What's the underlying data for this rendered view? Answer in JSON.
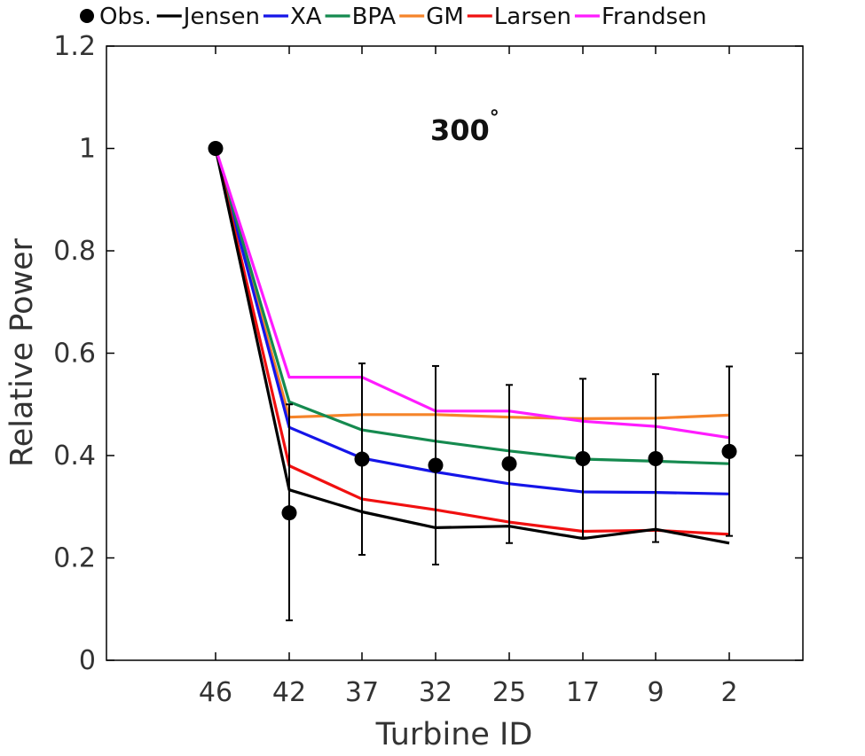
{
  "chart_data": {
    "type": "line",
    "title": "",
    "annotation": {
      "text": "300",
      "superscript": "°"
    },
    "xlabel": "Turbine ID",
    "ylabel": "Relative Power",
    "categories": [
      "46",
      "42",
      "37",
      "32",
      "25",
      "17",
      "9",
      "2"
    ],
    "ylim": [
      0,
      1.2
    ],
    "yticks": [
      "0",
      "0.2",
      "0.4",
      "0.6",
      "0.8",
      "1",
      "1.2"
    ],
    "grid": false,
    "legend_position": "top",
    "observations": {
      "name": "Obs.",
      "color": "#000000",
      "values": [
        1.0,
        0.288,
        0.393,
        0.381,
        0.384,
        0.394,
        0.394,
        0.408
      ],
      "error_low": [
        null,
        0.078,
        0.206,
        0.187,
        0.229,
        0.24,
        0.231,
        0.243
      ],
      "error_high": [
        null,
        0.5,
        0.58,
        0.575,
        0.538,
        0.55,
        0.559,
        0.574
      ]
    },
    "series": [
      {
        "name": "Jensen",
        "color": "#000000",
        "values": [
          1.0,
          0.333,
          0.29,
          0.259,
          0.262,
          0.238,
          0.256,
          0.229
        ]
      },
      {
        "name": "XA",
        "color": "#1515e8",
        "values": [
          1.0,
          0.455,
          0.395,
          0.368,
          0.345,
          0.329,
          0.328,
          0.325
        ]
      },
      {
        "name": "BPA",
        "color": "#158a4f",
        "values": [
          1.0,
          0.505,
          0.45,
          0.428,
          0.409,
          0.393,
          0.389,
          0.384
        ]
      },
      {
        "name": "GM",
        "color": "#f5842a",
        "values": [
          1.0,
          0.475,
          0.48,
          0.48,
          0.475,
          0.472,
          0.473,
          0.479
        ]
      },
      {
        "name": "Larsen",
        "color": "#f01010",
        "values": [
          1.0,
          0.38,
          0.315,
          0.294,
          0.27,
          0.252,
          0.254,
          0.246
        ]
      },
      {
        "name": "Frandsen",
        "color": "#ff1cff",
        "values": [
          1.0,
          0.553,
          0.553,
          0.487,
          0.487,
          0.467,
          0.457,
          0.435
        ]
      }
    ]
  }
}
